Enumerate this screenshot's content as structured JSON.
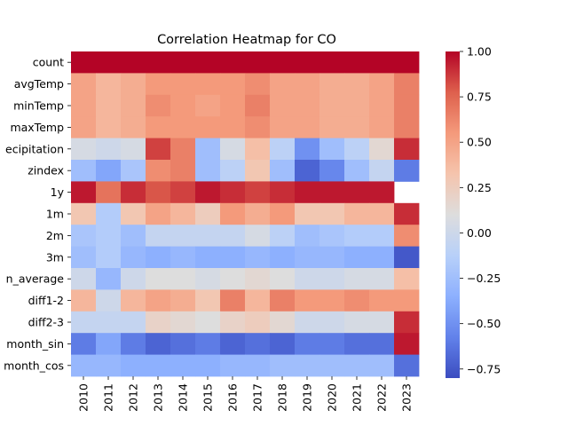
{
  "chart_data": {
    "type": "heatmap",
    "title": "Correlation Heatmap for CO",
    "columns": [
      "2010",
      "2011",
      "2012",
      "2013",
      "2014",
      "2015",
      "2016",
      "2017",
      "2018",
      "2019",
      "2020",
      "2021",
      "2022",
      "2023"
    ],
    "rows": [
      "count",
      "avgTemp",
      "minTemp",
      "maxTemp",
      "ecipitation",
      "zindex",
      "1y",
      "1m",
      "2m",
      "3m",
      "n_average",
      "diff1-2",
      "diff2-3",
      "month_sin",
      "month_cos"
    ],
    "values": [
      [
        1,
        1,
        1,
        1,
        1,
        1,
        1,
        1,
        1,
        1,
        1,
        1,
        1,
        1
      ],
      [
        0.5,
        0.4,
        0.45,
        0.55,
        0.55,
        0.55,
        0.55,
        0.6,
        0.5,
        0.5,
        0.45,
        0.45,
        0.5,
        0.65
      ],
      [
        0.5,
        0.4,
        0.45,
        0.6,
        0.55,
        0.5,
        0.55,
        0.65,
        0.5,
        0.5,
        0.45,
        0.45,
        0.5,
        0.65
      ],
      [
        0.5,
        0.4,
        0.45,
        0.55,
        0.55,
        0.55,
        0.55,
        0.6,
        0.5,
        0.5,
        0.45,
        0.45,
        0.5,
        0.65
      ],
      [
        0.05,
        0,
        0.05,
        0.85,
        0.65,
        -0.25,
        0.05,
        0.35,
        -0.1,
        -0.5,
        -0.25,
        -0.1,
        0.15,
        0.9
      ],
      [
        -0.25,
        -0.4,
        -0.2,
        0.6,
        0.65,
        -0.25,
        -0.1,
        0.3,
        -0.25,
        -0.7,
        -0.55,
        -0.25,
        -0.05,
        -0.6
      ],
      [
        0.95,
        0.7,
        0.9,
        0.8,
        0.85,
        0.95,
        0.9,
        0.85,
        0.9,
        0.95,
        0.95,
        0.95,
        0.95,
        null
      ],
      [
        0.3,
        -0.15,
        0.3,
        0.5,
        0.4,
        0.25,
        0.55,
        0.45,
        0.55,
        0.3,
        0.3,
        0.4,
        0.4,
        0.9
      ],
      [
        -0.2,
        -0.15,
        -0.25,
        -0.05,
        -0.05,
        -0.05,
        -0.05,
        0.05,
        -0.1,
        -0.25,
        -0.2,
        -0.15,
        -0.15,
        0.6
      ],
      [
        -0.25,
        -0.15,
        -0.3,
        -0.35,
        -0.3,
        -0.35,
        -0.35,
        -0.3,
        -0.35,
        -0.3,
        -0.3,
        -0.35,
        -0.35,
        -0.75
      ],
      [
        0,
        -0.3,
        0,
        0.1,
        0.1,
        0.05,
        0.1,
        0.15,
        0.1,
        0,
        0,
        0.05,
        0.05,
        0.35
      ],
      [
        0.4,
        0,
        0.4,
        0.5,
        0.45,
        0.3,
        0.65,
        0.4,
        0.65,
        0.55,
        0.55,
        0.6,
        0.55,
        0.55
      ],
      [
        -0.05,
        -0.05,
        -0.05,
        0.2,
        0.15,
        0.1,
        0.2,
        0.25,
        0.15,
        0,
        0,
        0.05,
        0.05,
        0.9
      ],
      [
        -0.6,
        -0.4,
        -0.6,
        -0.7,
        -0.65,
        -0.6,
        -0.7,
        -0.65,
        -0.7,
        -0.6,
        -0.6,
        -0.65,
        -0.65,
        0.95
      ],
      [
        -0.3,
        -0.3,
        -0.35,
        -0.35,
        -0.35,
        -0.35,
        -0.3,
        -0.3,
        -0.25,
        -0.25,
        -0.25,
        -0.25,
        -0.25,
        -0.65
      ]
    ],
    "colorbar": {
      "min": -0.8,
      "max": 1.0,
      "ticks": [
        1.0,
        0.75,
        0.5,
        0.25,
        0.0,
        -0.25,
        -0.5,
        -0.75
      ],
      "tick_labels": [
        "1.00",
        "0.75",
        "0.50",
        "0.25",
        "0.00",
        "−0.25",
        "−0.50",
        "−0.75"
      ]
    },
    "colormap": "coolwarm"
  }
}
